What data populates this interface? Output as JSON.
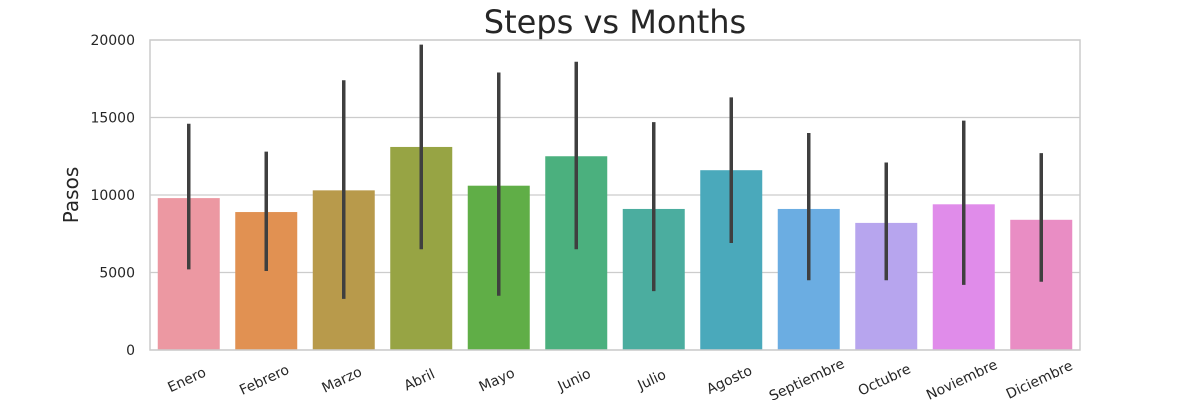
{
  "chart_data": {
    "type": "bar",
    "title": "Steps vs Months",
    "xlabel": "",
    "ylabel": "Pasos",
    "ylim": [
      0,
      20000
    ],
    "yticks": [
      0,
      5000,
      10000,
      15000,
      20000
    ],
    "grid": true,
    "categories": [
      "Enero",
      "Febrero",
      "Marzo",
      "Abril",
      "Mayo",
      "Junio",
      "Julio",
      "Agosto",
      "Septiembre",
      "Octubre",
      "Noviembre",
      "Diciembre"
    ],
    "values": [
      9800,
      8900,
      10300,
      13100,
      10600,
      12500,
      9100,
      11600,
      9100,
      8200,
      9400,
      8400
    ],
    "error_low": [
      5200,
      5100,
      3300,
      6500,
      3500,
      6500,
      3800,
      6900,
      4500,
      4500,
      4200,
      4400
    ],
    "error_high": [
      14600,
      12800,
      17400,
      19700,
      17900,
      18600,
      14700,
      16300,
      14000,
      12100,
      14800,
      12700
    ],
    "colors": [
      "#ec98a2",
      "#e19152",
      "#b89a4b",
      "#97a444",
      "#60ae47",
      "#4bb07e",
      "#4bad9f",
      "#4aa9bb",
      "#6bade2",
      "#b7a5ee",
      "#e08cea",
      "#e98dc4"
    ],
    "error_color": "#3f3f3f"
  }
}
